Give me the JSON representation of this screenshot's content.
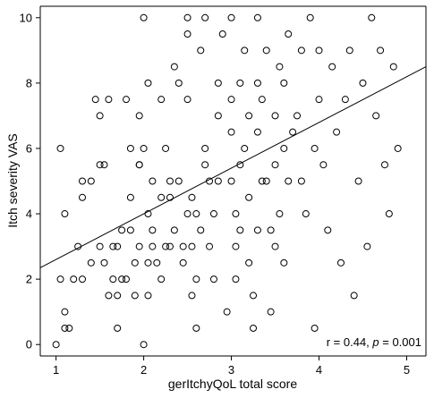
{
  "chart_data": {
    "type": "scatter",
    "xlabel": "gerItchyQoL total score",
    "ylabel": "Itch severity VAS",
    "xticks": [
      1,
      2,
      3,
      4,
      5
    ],
    "yticks": [
      0,
      2,
      4,
      6,
      8,
      10
    ],
    "xlim": [
      0.82,
      5.22
    ],
    "ylim": [
      -0.35,
      10.35
    ],
    "grid": false,
    "annotation": {
      "r_text": "r  = 0.44, ",
      "p_symbol": "p",
      "p_text": " = 0.001"
    },
    "fit_line": {
      "x": [
        0.82,
        5.22
      ],
      "y": [
        2.35,
        8.5
      ]
    },
    "points": [
      [
        1.0,
        0
      ],
      [
        1.05,
        6
      ],
      [
        1.1,
        4
      ],
      [
        1.1,
        1
      ],
      [
        1.15,
        0.5
      ],
      [
        1.1,
        0.5
      ],
      [
        1.05,
        2
      ],
      [
        1.2,
        2
      ],
      [
        1.3,
        2
      ],
      [
        1.4,
        2.5
      ],
      [
        1.25,
        3
      ],
      [
        1.3,
        5
      ],
      [
        1.3,
        4.5
      ],
      [
        1.4,
        5
      ],
      [
        1.45,
        7.5
      ],
      [
        1.5,
        7
      ],
      [
        1.5,
        3
      ],
      [
        1.55,
        2.5
      ],
      [
        1.5,
        5.5
      ],
      [
        1.55,
        5.5
      ],
      [
        1.6,
        1.5
      ],
      [
        1.6,
        7.5
      ],
      [
        1.65,
        2
      ],
      [
        1.65,
        3
      ],
      [
        1.7,
        3
      ],
      [
        1.7,
        1.5
      ],
      [
        1.75,
        2
      ],
      [
        1.8,
        2
      ],
      [
        1.7,
        0.5
      ],
      [
        1.8,
        7.5
      ],
      [
        1.75,
        3.5
      ],
      [
        1.85,
        6
      ],
      [
        1.85,
        3.5
      ],
      [
        1.85,
        4.5
      ],
      [
        1.9,
        1.5
      ],
      [
        1.95,
        7
      ],
      [
        1.9,
        2.5
      ],
      [
        1.95,
        3
      ],
      [
        1.95,
        5.5
      ],
      [
        1.95,
        5.5
      ],
      [
        2.0,
        10
      ],
      [
        2.05,
        2.5
      ],
      [
        2.05,
        4
      ],
      [
        2.05,
        8
      ],
      [
        2.0,
        6
      ],
      [
        2.0,
        0
      ],
      [
        2.05,
        1.5
      ],
      [
        2.1,
        3.5
      ],
      [
        2.1,
        3
      ],
      [
        2.1,
        5
      ],
      [
        2.15,
        2.5
      ],
      [
        2.2,
        2
      ],
      [
        2.2,
        4.5
      ],
      [
        2.2,
        7.5
      ],
      [
        2.25,
        3
      ],
      [
        2.25,
        6
      ],
      [
        2.3,
        3
      ],
      [
        2.3,
        4.5
      ],
      [
        2.3,
        5
      ],
      [
        2.35,
        3.5
      ],
      [
        2.35,
        8.5
      ],
      [
        2.4,
        8
      ],
      [
        2.4,
        5
      ],
      [
        2.45,
        2.5
      ],
      [
        2.45,
        3
      ],
      [
        2.5,
        10
      ],
      [
        2.5,
        9.5
      ],
      [
        2.5,
        7.5
      ],
      [
        2.5,
        4
      ],
      [
        2.55,
        4.5
      ],
      [
        2.55,
        1.5
      ],
      [
        2.55,
        3
      ],
      [
        2.6,
        0.5
      ],
      [
        2.6,
        2
      ],
      [
        2.6,
        4
      ],
      [
        2.65,
        3.5
      ],
      [
        2.65,
        9
      ],
      [
        2.7,
        10
      ],
      [
        2.7,
        5.5
      ],
      [
        2.7,
        6
      ],
      [
        2.75,
        5
      ],
      [
        2.75,
        3
      ],
      [
        2.8,
        2
      ],
      [
        2.8,
        4
      ],
      [
        2.85,
        8
      ],
      [
        2.85,
        7
      ],
      [
        2.85,
        5
      ],
      [
        2.9,
        9.5
      ],
      [
        2.95,
        1
      ],
      [
        3.0,
        10
      ],
      [
        3.0,
        7.5
      ],
      [
        3.0,
        6.5
      ],
      [
        3.0,
        5
      ],
      [
        3.05,
        4
      ],
      [
        3.05,
        3
      ],
      [
        3.05,
        2
      ],
      [
        3.1,
        8
      ],
      [
        3.1,
        5.5
      ],
      [
        3.1,
        3.5
      ],
      [
        3.15,
        9
      ],
      [
        3.15,
        6
      ],
      [
        3.2,
        7
      ],
      [
        3.2,
        4.5
      ],
      [
        3.2,
        2.5
      ],
      [
        3.25,
        1.5
      ],
      [
        3.25,
        0.5
      ],
      [
        3.3,
        10
      ],
      [
        3.3,
        8
      ],
      [
        3.3,
        6.5
      ],
      [
        3.3,
        3.5
      ],
      [
        3.35,
        5
      ],
      [
        3.35,
        7.5
      ],
      [
        3.4,
        9
      ],
      [
        3.4,
        5
      ],
      [
        3.45,
        3.5
      ],
      [
        3.45,
        1
      ],
      [
        3.5,
        7
      ],
      [
        3.5,
        5.5
      ],
      [
        3.5,
        3
      ],
      [
        3.55,
        8.5
      ],
      [
        3.55,
        4
      ],
      [
        3.6,
        8
      ],
      [
        3.6,
        6
      ],
      [
        3.6,
        2.5
      ],
      [
        3.65,
        9.5
      ],
      [
        3.65,
        5
      ],
      [
        3.7,
        6.5
      ],
      [
        3.75,
        7
      ],
      [
        3.8,
        9
      ],
      [
        3.8,
        5
      ],
      [
        3.85,
        4
      ],
      [
        3.9,
        10
      ],
      [
        3.95,
        6
      ],
      [
        3.95,
        0.5
      ],
      [
        4.0,
        9
      ],
      [
        4.0,
        7.5
      ],
      [
        4.05,
        5.5
      ],
      [
        4.1,
        3.5
      ],
      [
        4.15,
        8.5
      ],
      [
        4.2,
        6.5
      ],
      [
        4.25,
        2.5
      ],
      [
        4.3,
        7.5
      ],
      [
        4.35,
        9
      ],
      [
        4.4,
        1.5
      ],
      [
        4.45,
        5
      ],
      [
        4.5,
        8
      ],
      [
        4.55,
        3
      ],
      [
        4.6,
        10
      ],
      [
        4.65,
        7
      ],
      [
        4.7,
        9
      ],
      [
        4.75,
        5.5
      ],
      [
        4.8,
        4
      ],
      [
        4.85,
        8.5
      ],
      [
        4.9,
        6
      ]
    ]
  }
}
